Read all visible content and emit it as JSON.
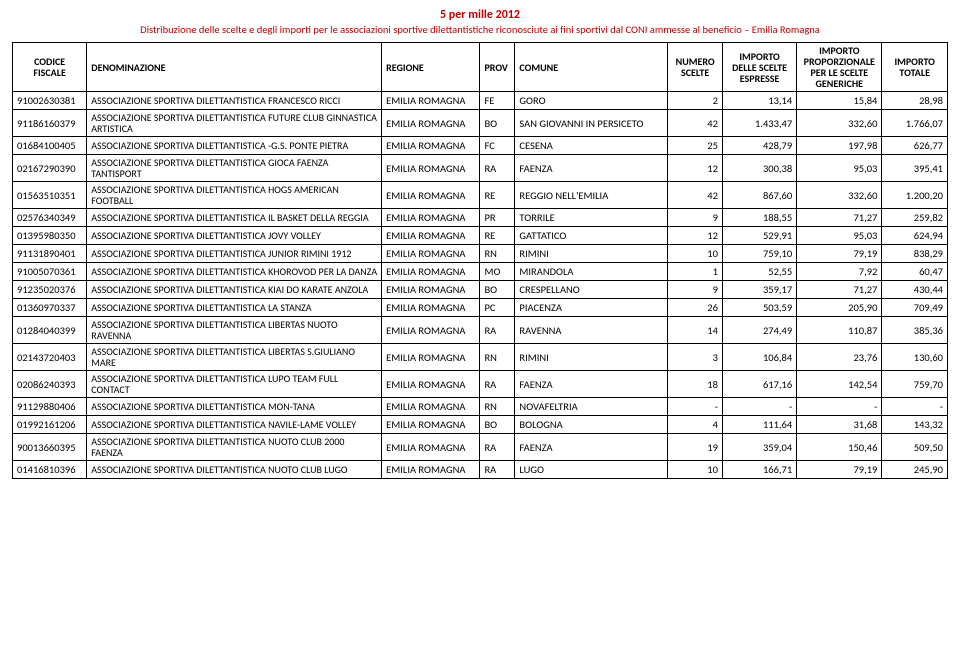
{
  "title": "5 per mille 2012",
  "subtitle": "Distribuzione delle scelte e degli importi per le associazioni sportive dilettantistiche riconosciute ai fini sportivi dal CONI ammesse al beneficio – Emilia Romagna",
  "title_color": "#c00000",
  "columns": [
    "CODICE FISCALE",
    "DENOMINAZIONE",
    "REGIONE",
    "PROV",
    "COMUNE",
    "NUMERO SCELTE",
    "IMPORTO DELLE SCELTE ESPRESSE",
    "IMPORTO PROPORZIONALE PER LE SCELTE GENERICHE",
    "IMPORTO TOTALE"
  ],
  "rows": [
    {
      "cf": "91002630381",
      "den": "ASSOCIAZIONE SPORTIVA DILETTANTISTICA FRANCESCO RICCI",
      "reg": "EMILIA ROMAGNA",
      "prov": "FE",
      "com": "GORO",
      "ns": "2",
      "ie": "13,14",
      "ig": "15,84",
      "it": "28,98"
    },
    {
      "cf": "91186160379",
      "den": "ASSOCIAZIONE SPORTIVA DILETTANTISTICA FUTURE CLUB GINNASTICA ARTISTICA",
      "reg": "EMILIA ROMAGNA",
      "prov": "BO",
      "com": "SAN GIOVANNI IN PERSICETO",
      "ns": "42",
      "ie": "1.433,47",
      "ig": "332,60",
      "it": "1.766,07"
    },
    {
      "cf": "01684100405",
      "den": "ASSOCIAZIONE SPORTIVA DILETTANTISTICA -G.S. PONTE PIETRA",
      "reg": "EMILIA ROMAGNA",
      "prov": "FC",
      "com": "CESENA",
      "ns": "25",
      "ie": "428,79",
      "ig": "197,98",
      "it": "626,77"
    },
    {
      "cf": "02167290390",
      "den": "ASSOCIAZIONE SPORTIVA DILETTANTISTICA GIOCA FAENZA TANTISPORT",
      "reg": "EMILIA ROMAGNA",
      "prov": "RA",
      "com": "FAENZA",
      "ns": "12",
      "ie": "300,38",
      "ig": "95,03",
      "it": "395,41"
    },
    {
      "cf": "01563510351",
      "den": "ASSOCIAZIONE SPORTIVA DILETTANTISTICA HOGS AMERICAN FOOTBALL",
      "reg": "EMILIA ROMAGNA",
      "prov": "RE",
      "com": "REGGIO NELL'EMILIA",
      "ns": "42",
      "ie": "867,60",
      "ig": "332,60",
      "it": "1.200,20"
    },
    {
      "cf": "02576340349",
      "den": "ASSOCIAZIONE SPORTIVA DILETTANTISTICA IL BASKET DELLA REGGIA",
      "reg": "EMILIA ROMAGNA",
      "prov": "PR",
      "com": "TORRILE",
      "ns": "9",
      "ie": "188,55",
      "ig": "71,27",
      "it": "259,82"
    },
    {
      "cf": "01395980350",
      "den": "ASSOCIAZIONE SPORTIVA DILETTANTISTICA JOVY VOLLEY",
      "reg": "EMILIA ROMAGNA",
      "prov": "RE",
      "com": "GATTATICO",
      "ns": "12",
      "ie": "529,91",
      "ig": "95,03",
      "it": "624,94"
    },
    {
      "cf": "91131890401",
      "den": "ASSOCIAZIONE SPORTIVA DILETTANTISTICA JUNIOR RIMINI 1912",
      "reg": "EMILIA ROMAGNA",
      "prov": "RN",
      "com": "RIMINI",
      "ns": "10",
      "ie": "759,10",
      "ig": "79,19",
      "it": "838,29"
    },
    {
      "cf": "91005070361",
      "den": "ASSOCIAZIONE SPORTIVA DILETTANTISTICA KHOROVOD PER LA DANZA",
      "reg": "EMILIA ROMAGNA",
      "prov": "MO",
      "com": "MIRANDOLA",
      "ns": "1",
      "ie": "52,55",
      "ig": "7,92",
      "it": "60,47"
    },
    {
      "cf": "91235020376",
      "den": "ASSOCIAZIONE SPORTIVA DILETTANTISTICA KIAI DO KARATE ANZOLA",
      "reg": "EMILIA ROMAGNA",
      "prov": "BO",
      "com": "CRESPELLANO",
      "ns": "9",
      "ie": "359,17",
      "ig": "71,27",
      "it": "430,44"
    },
    {
      "cf": "01360970337",
      "den": "ASSOCIAZIONE SPORTIVA DILETTANTISTICA LA STANZA",
      "reg": "EMILIA ROMAGNA",
      "prov": "PC",
      "com": "PIACENZA",
      "ns": "26",
      "ie": "503,59",
      "ig": "205,90",
      "it": "709,49"
    },
    {
      "cf": "01284040399",
      "den": "ASSOCIAZIONE SPORTIVA DILETTANTISTICA LIBERTAS NUOTO RAVENNA",
      "reg": "EMILIA ROMAGNA",
      "prov": "RA",
      "com": "RAVENNA",
      "ns": "14",
      "ie": "274,49",
      "ig": "110,87",
      "it": "385,36"
    },
    {
      "cf": "02143720403",
      "den": "ASSOCIAZIONE SPORTIVA DILETTANTISTICA LIBERTAS S.GIULIANO MARE",
      "reg": "EMILIA ROMAGNA",
      "prov": "RN",
      "com": "RIMINI",
      "ns": "3",
      "ie": "106,84",
      "ig": "23,76",
      "it": "130,60"
    },
    {
      "cf": "02086240393",
      "den": "ASSOCIAZIONE SPORTIVA DILETTANTISTICA LUPO TEAM FULL CONTACT",
      "reg": "EMILIA ROMAGNA",
      "prov": "RA",
      "com": "FAENZA",
      "ns": "18",
      "ie": "617,16",
      "ig": "142,54",
      "it": "759,70"
    },
    {
      "cf": "91129880406",
      "den": "ASSOCIAZIONE SPORTIVA DILETTANTISTICA MON-TANA",
      "reg": "EMILIA ROMAGNA",
      "prov": "RN",
      "com": "NOVAFELTRIA",
      "ns": "-",
      "ie": "-",
      "ig": "-",
      "it": "-"
    },
    {
      "cf": "01992161206",
      "den": "ASSOCIAZIONE SPORTIVA DILETTANTISTICA NAVILE-LAME VOLLEY",
      "reg": "EMILIA ROMAGNA",
      "prov": "BO",
      "com": "BOLOGNA",
      "ns": "4",
      "ie": "111,64",
      "ig": "31,68",
      "it": "143,32"
    },
    {
      "cf": "90013660395",
      "den": "ASSOCIAZIONE SPORTIVA DILETTANTISTICA NUOTO CLUB 2000 FAENZA",
      "reg": "EMILIA ROMAGNA",
      "prov": "RA",
      "com": "FAENZA",
      "ns": "19",
      "ie": "359,04",
      "ig": "150,46",
      "it": "509,50"
    },
    {
      "cf": "01416810396",
      "den": "ASSOCIAZIONE SPORTIVA DILETTANTISTICA NUOTO CLUB LUGO",
      "reg": "EMILIA ROMAGNA",
      "prov": "RA",
      "com": "LUGO",
      "ns": "10",
      "ie": "166,71",
      "ig": "79,19",
      "it": "245,90"
    }
  ]
}
